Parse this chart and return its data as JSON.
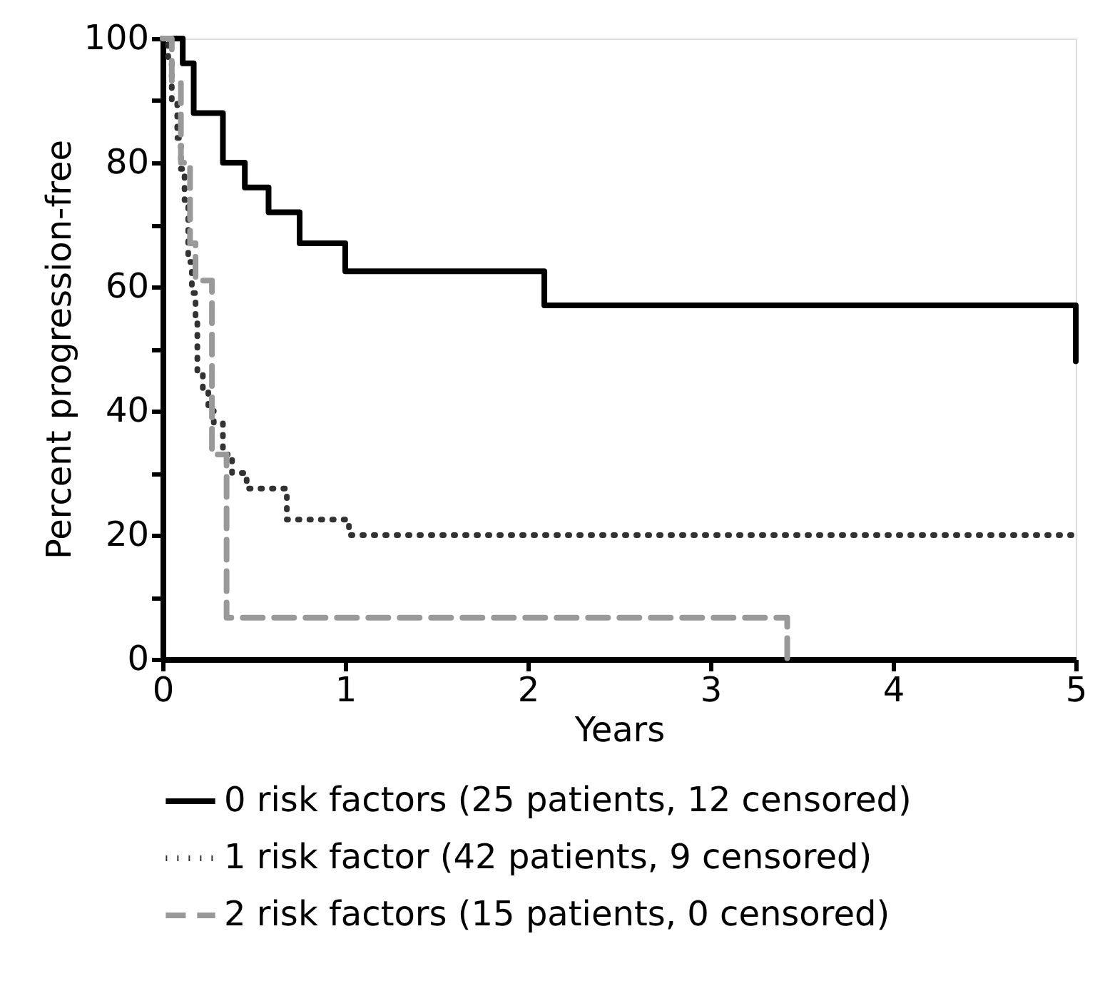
{
  "chart_data": {
    "type": "step",
    "xlabel": "Years",
    "ylabel": "Percent progression-free",
    "xlim": [
      0,
      5
    ],
    "ylim": [
      0,
      100
    ],
    "xticks": [
      0,
      1,
      2,
      3,
      4,
      5
    ],
    "yticks": [
      0,
      {
        "value": 10,
        "label": null
      },
      20,
      {
        "value": 30,
        "label": null
      },
      40,
      {
        "value": 50,
        "label": null
      },
      60,
      {
        "value": 70,
        "label": null
      },
      80,
      {
        "value": 90,
        "label": null
      },
      100
    ],
    "legend": "bottom",
    "series": [
      {
        "name": "0 risk factors (25 patients, 12 censored)",
        "color": "#000000",
        "line_style": "solid",
        "x": [
          0,
          0.11,
          0.17,
          0.33,
          0.45,
          0.58,
          0.75,
          1.0,
          2.09,
          5.0
        ],
        "values": [
          100,
          96,
          88,
          80,
          76,
          72,
          67,
          62.5,
          57,
          48
        ]
      },
      {
        "name": "1 risk factor (42 patients, 9 censored)",
        "color": "#333333",
        "line_style": "dotted",
        "x": [
          0,
          0.03,
          0.05,
          0.08,
          0.1,
          0.12,
          0.14,
          0.16,
          0.18,
          0.19,
          0.22,
          0.25,
          0.28,
          0.33,
          0.38,
          0.46,
          0.68,
          1.02,
          5.0
        ],
        "values": [
          100,
          97,
          90,
          84,
          79,
          74,
          64,
          59,
          54.5,
          46,
          43,
          40,
          38,
          33,
          30,
          27.5,
          22.5,
          20,
          20
        ]
      },
      {
        "name": "2 risk factors (15 patients, 0 censored)",
        "color": "#999999",
        "line_style": "dashed",
        "x": [
          0,
          0.05,
          0.1,
          0.15,
          0.18,
          0.27,
          0.35,
          3.42
        ],
        "values": [
          100,
          93,
          80,
          67,
          61,
          33,
          6.7,
          0
        ]
      }
    ]
  }
}
